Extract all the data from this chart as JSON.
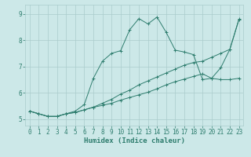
{
  "xlabel": "Humidex (Indice chaleur)",
  "background_color": "#cce8e8",
  "line_color": "#2e7d6e",
  "grid_color": "#aacccc",
  "xlim": [
    -0.5,
    23.5
  ],
  "ylim": [
    4.75,
    9.35
  ],
  "xticks": [
    0,
    1,
    2,
    3,
    4,
    5,
    6,
    7,
    8,
    9,
    10,
    11,
    12,
    13,
    14,
    15,
    16,
    17,
    18,
    19,
    20,
    21,
    22,
    23
  ],
  "yticks": [
    5,
    6,
    7,
    8,
    9
  ],
  "line1_x": [
    0,
    1,
    2,
    3,
    4,
    5,
    6,
    7,
    8,
    9,
    10,
    11,
    12,
    13,
    14,
    15,
    16,
    17,
    18,
    19,
    20,
    21,
    22,
    23
  ],
  "line1_y": [
    5.3,
    5.2,
    5.1,
    5.1,
    5.2,
    5.3,
    5.55,
    6.55,
    7.2,
    7.5,
    7.6,
    8.4,
    8.82,
    8.62,
    8.88,
    8.3,
    7.62,
    7.55,
    7.45,
    6.5,
    6.55,
    6.95,
    7.65,
    8.8
  ],
  "line2_x": [
    0,
    1,
    2,
    3,
    4,
    5,
    6,
    7,
    8,
    9,
    10,
    11,
    12,
    13,
    14,
    15,
    16,
    17,
    18,
    19,
    20,
    21,
    22,
    23
  ],
  "line2_y": [
    5.3,
    5.2,
    5.1,
    5.1,
    5.2,
    5.25,
    5.35,
    5.45,
    5.6,
    5.75,
    5.95,
    6.1,
    6.3,
    6.45,
    6.6,
    6.75,
    6.9,
    7.05,
    7.15,
    7.2,
    7.35,
    7.5,
    7.65,
    8.78
  ],
  "line3_x": [
    0,
    1,
    2,
    3,
    4,
    5,
    6,
    7,
    8,
    9,
    10,
    11,
    12,
    13,
    14,
    15,
    16,
    17,
    18,
    19,
    20,
    21,
    22,
    23
  ],
  "line3_y": [
    5.3,
    5.2,
    5.1,
    5.1,
    5.2,
    5.25,
    5.35,
    5.45,
    5.52,
    5.6,
    5.72,
    5.82,
    5.92,
    6.02,
    6.15,
    6.3,
    6.42,
    6.52,
    6.62,
    6.72,
    6.55,
    6.5,
    6.5,
    6.55
  ]
}
